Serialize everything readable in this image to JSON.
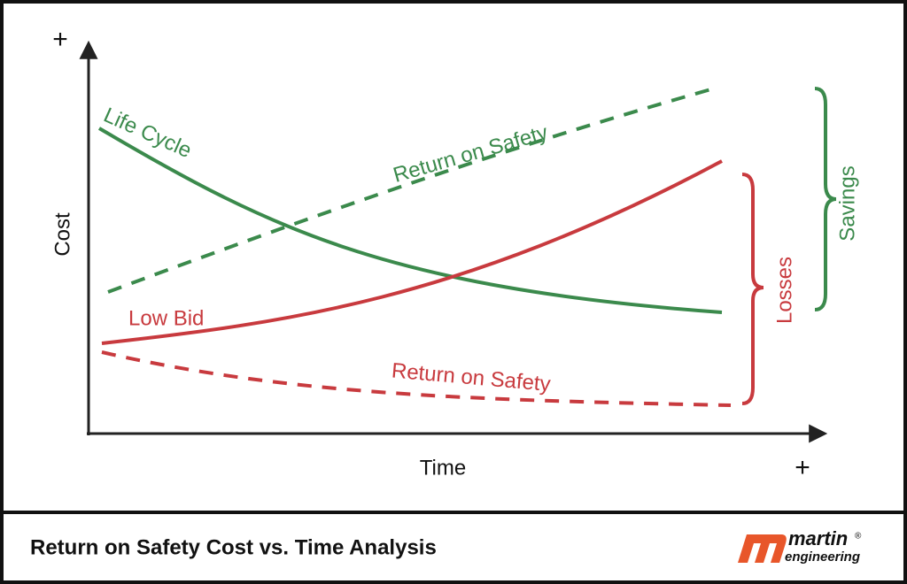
{
  "diagram": {
    "axes": {
      "y_label": "Cost",
      "x_label": "Time",
      "y_plus": "+",
      "x_plus": "+"
    },
    "curves": {
      "life_cycle": "Life Cycle",
      "return_on_safety_green": "Return on Safety",
      "low_bid": "Low Bid",
      "return_on_safety_red": "Return on Safety"
    },
    "braces": {
      "losses": "Losses",
      "savings": "Savings"
    }
  },
  "footer": {
    "title": "Return on Safety Cost vs. Time Analysis",
    "logo": {
      "name": "martin",
      "subtitle": "engineering",
      "mark": "®"
    }
  }
}
